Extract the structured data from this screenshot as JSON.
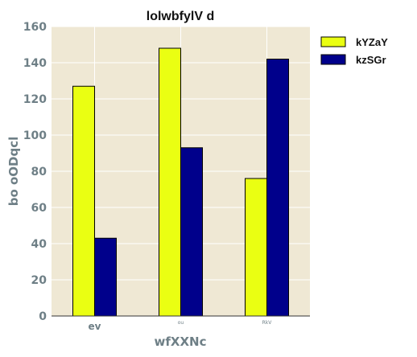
{
  "chart_data": {
    "type": "bar",
    "title": "lolwbfylV d",
    "xlabel": "wfXXNc",
    "ylabel": "bo  oODqcl",
    "categories": [
      "ev",
      "ou",
      "RkV"
    ],
    "category_label_sizes": [
      "large",
      "tiny",
      "tiny"
    ],
    "series": [
      {
        "name": "kYZaY",
        "values": [
          127,
          148,
          76
        ],
        "color": "#eaff12"
      },
      {
        "name": "kzSGr",
        "values": [
          43,
          93,
          142
        ],
        "color": "#00008b"
      }
    ],
    "ylim": [
      0,
      160
    ],
    "yticks": [
      "0",
      "20",
      "40",
      "60",
      "80",
      "100",
      "120",
      "140",
      "160"
    ],
    "grid": true,
    "legend_position": "outside-right-top",
    "plot_background": "#efe8d4",
    "grid_color": "#ffffff"
  }
}
